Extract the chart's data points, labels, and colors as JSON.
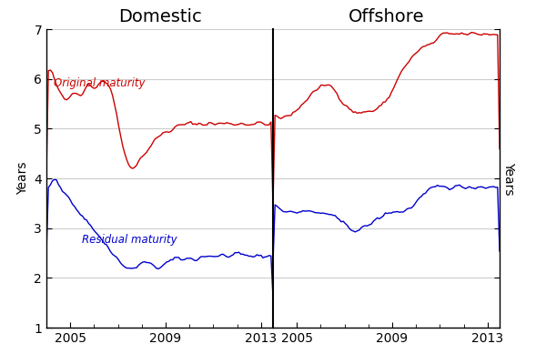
{
  "title_domestic": "Domestic",
  "title_offshore": "Offshore",
  "ylabel_left": "Years",
  "ylabel_right": "Years",
  "ylim": [
    1,
    7
  ],
  "yticks": [
    1,
    2,
    3,
    4,
    5,
    6,
    7
  ],
  "x_start_year": 2004.0,
  "x_end_year": 2013.5,
  "x_label_years": [
    2005,
    2009,
    2013
  ],
  "red_color": "#cc0000",
  "blue_color": "#0000cc",
  "label_original": "Original maturity",
  "label_residual": "Residual maturity",
  "background_color": "#ffffff",
  "grid_color": "#cccccc",
  "separator_color": "#000000",
  "title_fontsize": 14,
  "label_fontsize": 10,
  "axis_fontsize": 10
}
